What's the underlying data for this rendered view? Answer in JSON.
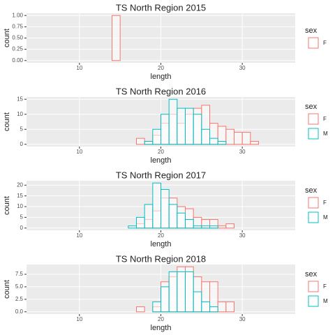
{
  "chart_data": [
    {
      "type": "histogram",
      "title": "TS North Region 2015",
      "xlabel": "length",
      "ylabel": "count",
      "legend_title": "sex",
      "grid": true,
      "bins": [
        5,
        6,
        7,
        8,
        9,
        10,
        11,
        12,
        13,
        14,
        15,
        16,
        17,
        18,
        19,
        20,
        21,
        22,
        23,
        24,
        25,
        26,
        27,
        28,
        29,
        30,
        31,
        32,
        33,
        34,
        35
      ],
      "series": [
        {
          "name": "F",
          "color": "#F8766D",
          "values": [
            0,
            0,
            0,
            0,
            0,
            0,
            0,
            0,
            0,
            1,
            0,
            0,
            0,
            0,
            0,
            0,
            0,
            0,
            0,
            0,
            0,
            0,
            0,
            0,
            0,
            0,
            0,
            0,
            0,
            0
          ]
        }
      ],
      "xlim": [
        3.5,
        36.5
      ],
      "xticks": [
        10,
        20,
        30
      ],
      "ylim": [
        -0.05,
        1.05
      ],
      "yticks": [
        {
          "value": 0,
          "label": "0.00"
        },
        {
          "value": 0.25,
          "label": "0.25"
        },
        {
          "value": 0.5,
          "label": "0.50"
        },
        {
          "value": 0.75,
          "label": "0.75"
        },
        {
          "value": 1,
          "label": "1.00"
        }
      ]
    },
    {
      "type": "histogram",
      "title": "TS North Region 2016",
      "xlabel": "length",
      "ylabel": "count",
      "legend_title": "sex",
      "grid": true,
      "bins": [
        5,
        6,
        7,
        8,
        9,
        10,
        11,
        12,
        13,
        14,
        15,
        16,
        17,
        18,
        19,
        20,
        21,
        22,
        23,
        24,
        25,
        26,
        27,
        28,
        29,
        30,
        31,
        32,
        33,
        34,
        35
      ],
      "series": [
        {
          "name": "F",
          "color": "#F8766D",
          "values": [
            0,
            0,
            0,
            0,
            0,
            0,
            0,
            0,
            0,
            0,
            0,
            0,
            2,
            1,
            3,
            7,
            10,
            7,
            10,
            12,
            13,
            7,
            6,
            5,
            4,
            4,
            1,
            0,
            0,
            0
          ]
        },
        {
          "name": "M",
          "color": "#00BFC4",
          "values": [
            0,
            0,
            0,
            0,
            0,
            0,
            0,
            0,
            0,
            0,
            0,
            0,
            0,
            1,
            5,
            10,
            15,
            12,
            12,
            10,
            5,
            2,
            1,
            0,
            0,
            0,
            0,
            0,
            0,
            0
          ]
        }
      ],
      "xlim": [
        3.5,
        36.5
      ],
      "xticks": [
        10,
        20,
        30
      ],
      "ylim": [
        -0.75,
        15.75
      ],
      "yticks": [
        0,
        5,
        10,
        15
      ]
    },
    {
      "type": "histogram",
      "title": "TS North Region 2017",
      "xlabel": "length",
      "ylabel": "count",
      "legend_title": "sex",
      "grid": true,
      "bins": [
        5,
        6,
        7,
        8,
        9,
        10,
        11,
        12,
        13,
        14,
        15,
        16,
        17,
        18,
        19,
        20,
        21,
        22,
        23,
        24,
        25,
        26,
        27,
        28,
        29,
        30,
        31,
        32,
        33,
        34,
        35
      ],
      "series": [
        {
          "name": "F",
          "color": "#F8766D",
          "values": [
            0,
            0,
            0,
            0,
            0,
            0,
            0,
            0,
            0,
            0,
            0,
            0,
            2,
            4,
            8,
            14,
            14,
            10,
            9,
            5,
            4,
            4,
            1,
            2,
            0,
            0,
            0,
            0,
            0,
            0
          ]
        },
        {
          "name": "M",
          "color": "#00BFC4",
          "values": [
            0,
            0,
            0,
            0,
            0,
            0,
            0,
            0,
            0,
            0,
            0,
            1,
            5,
            11,
            21,
            18,
            11,
            7,
            4,
            1,
            1,
            1,
            0,
            0,
            0,
            0,
            0,
            0,
            0,
            0
          ]
        }
      ],
      "xlim": [
        3.5,
        36.5
      ],
      "xticks": [
        10,
        20,
        30
      ],
      "ylim": [
        -1.05,
        22.05
      ],
      "yticks": [
        0,
        5,
        10,
        15,
        20
      ]
    },
    {
      "type": "histogram",
      "title": "TS North Region 2018",
      "xlabel": "length",
      "ylabel": "count",
      "legend_title": "sex",
      "grid": true,
      "bins": [
        5,
        6,
        7,
        8,
        9,
        10,
        11,
        12,
        13,
        14,
        15,
        16,
        17,
        18,
        19,
        20,
        21,
        22,
        23,
        24,
        25,
        26,
        27,
        28,
        29,
        30,
        31,
        32,
        33,
        34,
        35
      ],
      "series": [
        {
          "name": "F",
          "color": "#F8766D",
          "values": [
            0,
            0,
            0,
            0,
            0,
            0,
            0,
            0,
            0,
            0,
            0,
            0,
            1,
            0,
            1,
            6,
            7,
            9,
            9,
            7,
            6,
            6,
            2,
            2,
            0,
            0,
            0,
            0,
            0,
            0
          ]
        },
        {
          "name": "M",
          "color": "#00BFC4",
          "values": [
            0,
            0,
            0,
            0,
            0,
            0,
            0,
            0,
            0,
            0,
            0,
            0,
            0,
            0,
            2,
            5,
            8,
            8,
            8,
            4,
            2,
            1,
            0,
            0,
            0,
            0,
            0,
            0,
            0,
            0
          ]
        }
      ],
      "xlim": [
        3.5,
        36.5
      ],
      "xticks": [
        10,
        20,
        30
      ],
      "ylim": [
        -0.45,
        9.45
      ],
      "yticks": [
        {
          "value": 0,
          "label": "0.0"
        },
        {
          "value": 2.5,
          "label": "2.5"
        },
        {
          "value": 5,
          "label": "5.0"
        },
        {
          "value": 7.5,
          "label": "7.5"
        }
      ]
    }
  ]
}
